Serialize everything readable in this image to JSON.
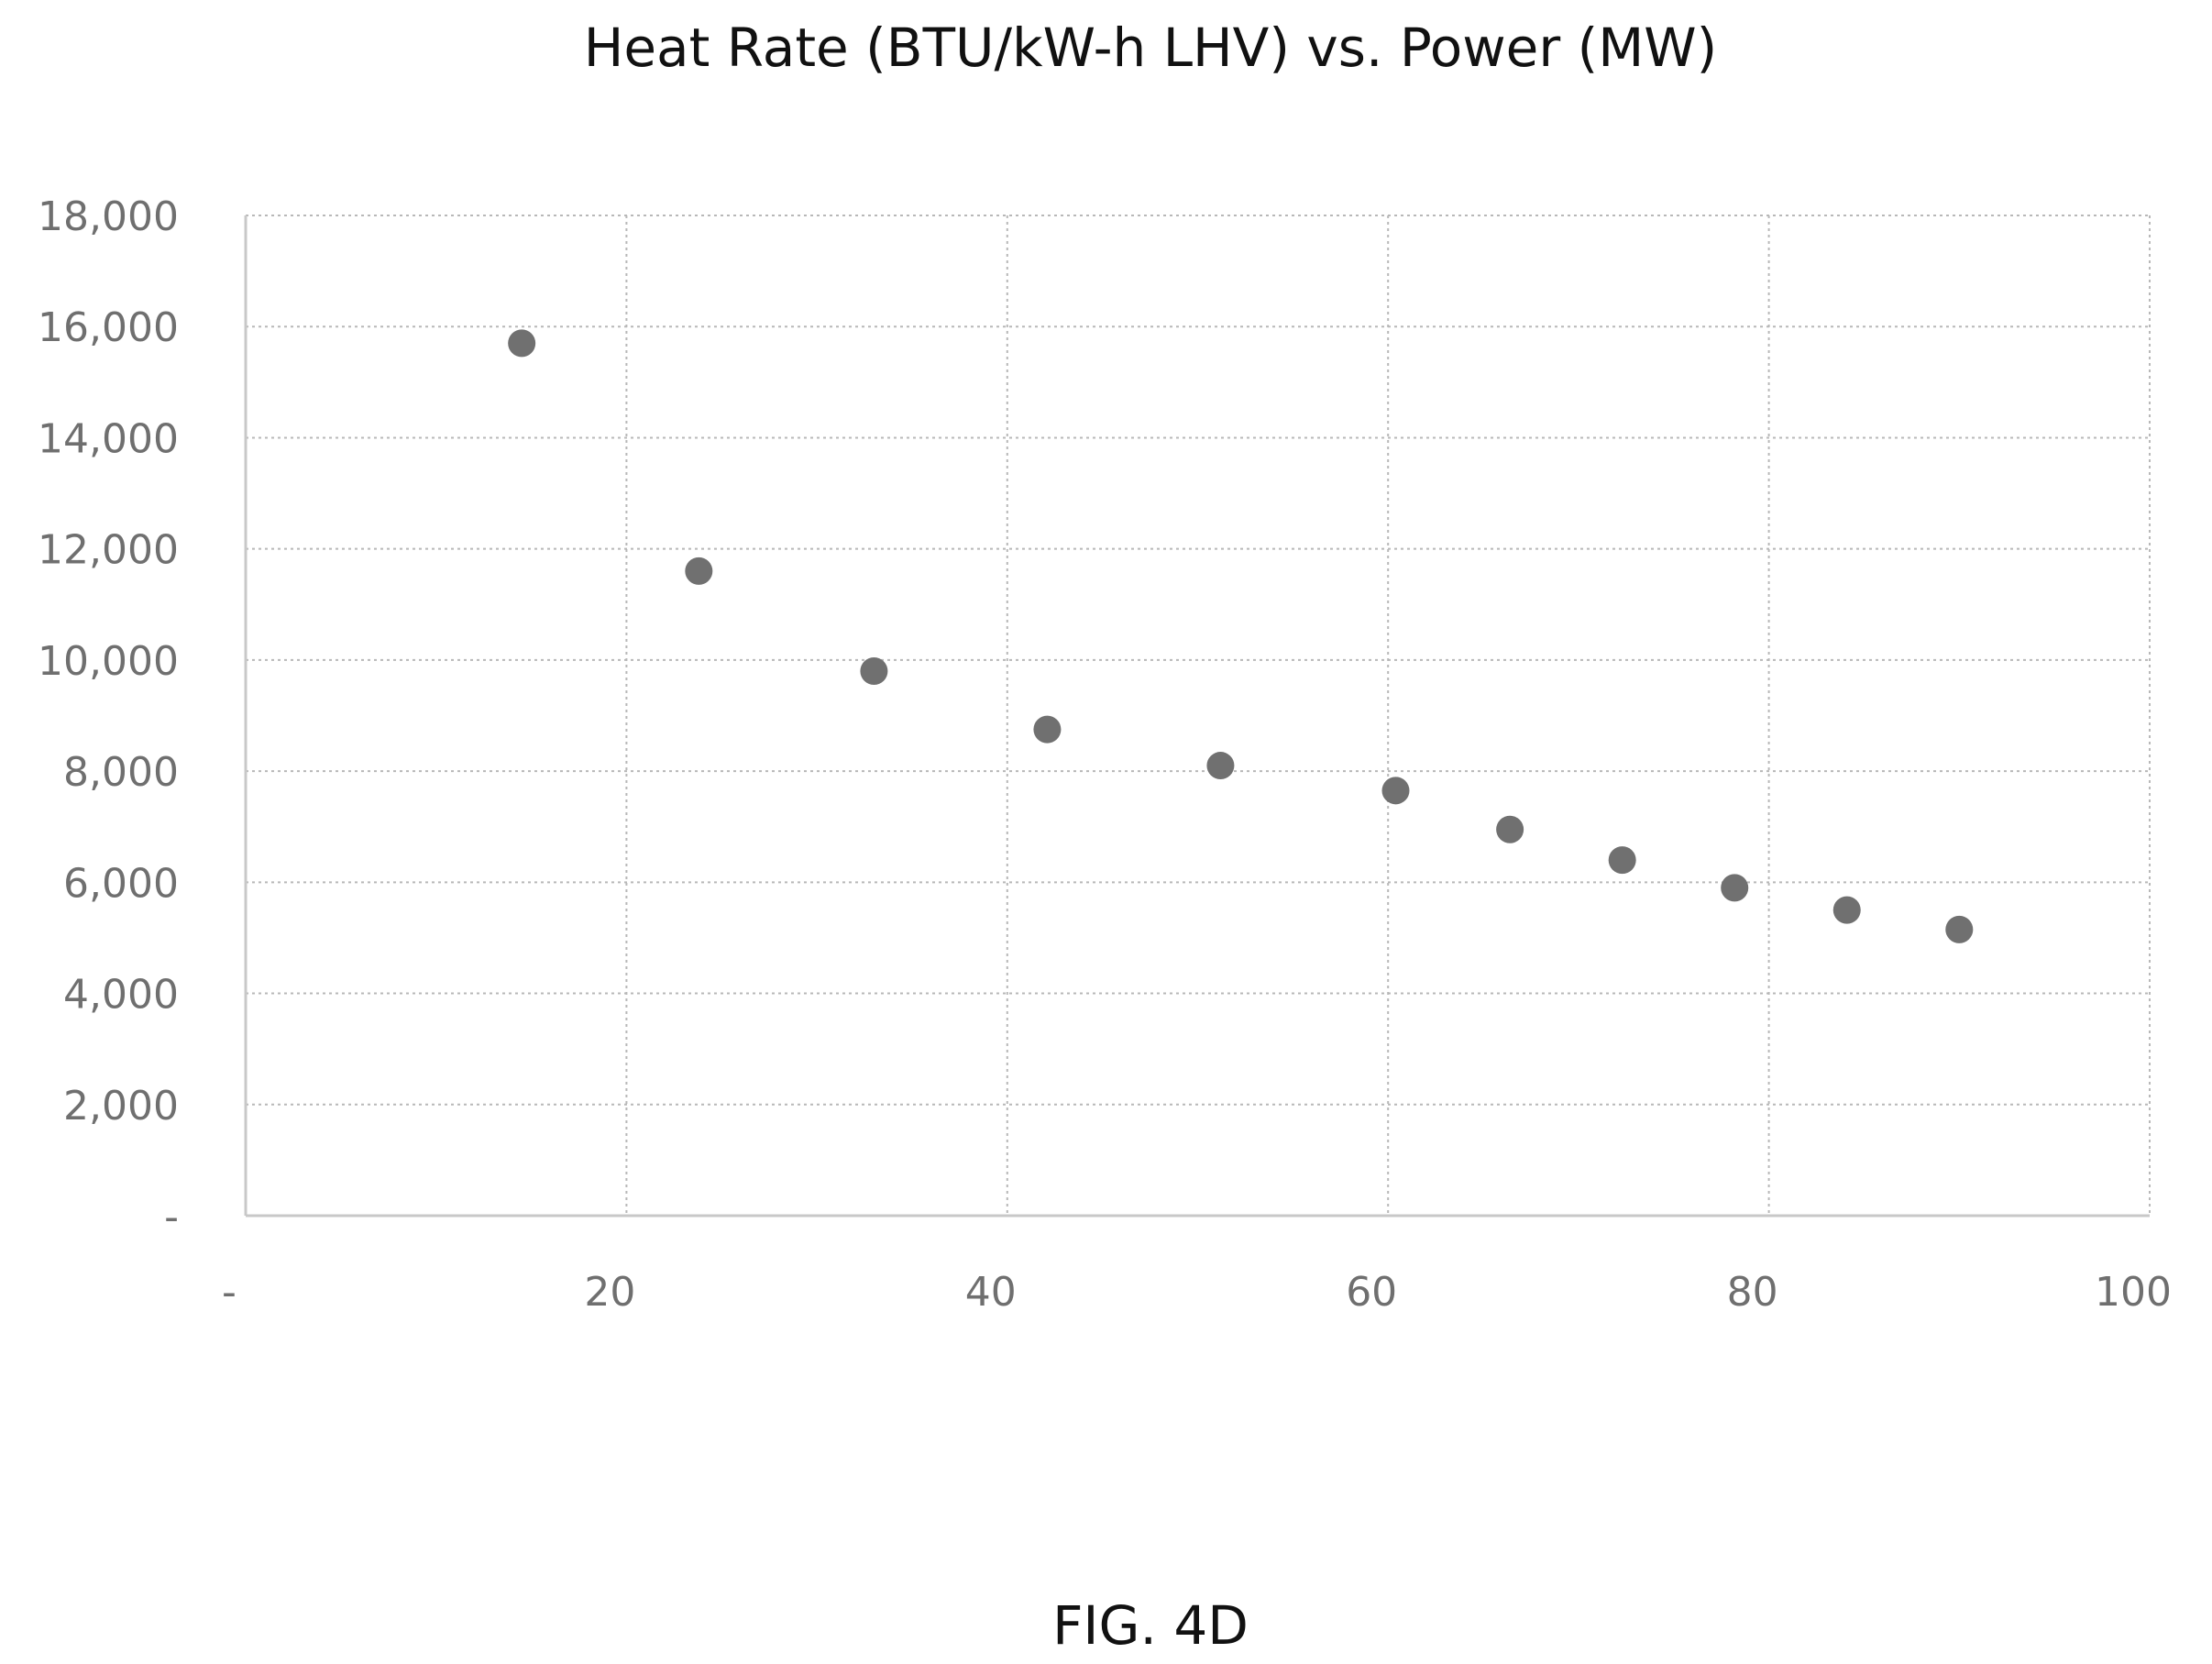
{
  "figure": {
    "caption": "FIG. 4D"
  },
  "chart_data": {
    "type": "scatter",
    "title": "Heat Rate (BTU/kW-h LHV) vs. Power (MW)",
    "xlabel": "",
    "ylabel": "",
    "xlim": [
      0,
      100
    ],
    "ylim": [
      0,
      18000
    ],
    "x_ticks": [
      0,
      20,
      40,
      60,
      80,
      100
    ],
    "x_tick_labels": [
      "-",
      "20",
      "40",
      "60",
      "80",
      "100"
    ],
    "y_ticks": [
      0,
      2000,
      4000,
      6000,
      8000,
      10000,
      12000,
      14000,
      16000,
      18000
    ],
    "y_tick_labels": [
      "-",
      "2,000",
      "4,000",
      "6,000",
      "8,000",
      "10,000",
      "12,000",
      "14,000",
      "16,000",
      "18,000"
    ],
    "grid": true,
    "legend": "none",
    "point_color": "#707070",
    "series": [
      {
        "x": [
          14.5,
          23.8,
          33,
          42.1,
          51.2,
          60.4,
          66.4,
          72.3,
          78.2,
          84.1,
          90
        ],
        "y": [
          15700,
          11600,
          9800,
          8750,
          8100,
          7650,
          6950,
          6400,
          5900,
          5500,
          5150
        ]
      }
    ]
  }
}
